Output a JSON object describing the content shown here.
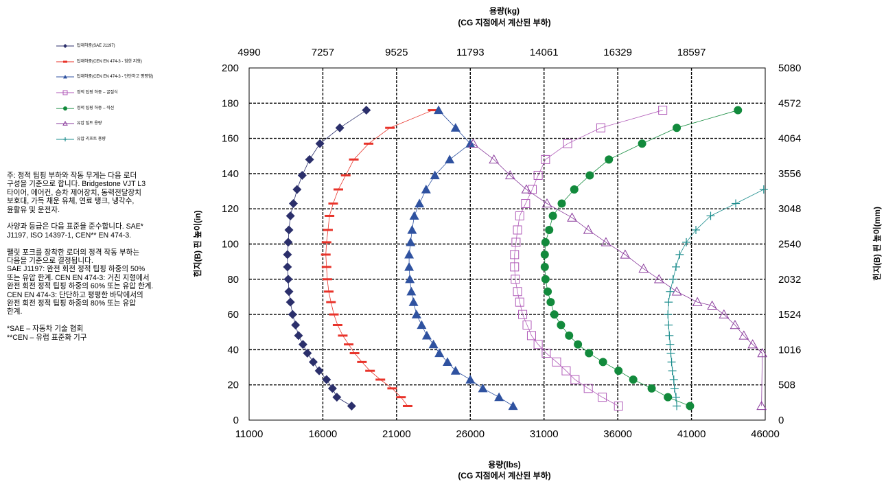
{
  "chart_data": {
    "type": "scatter",
    "title": "",
    "top_axis": {
      "title_line1": "용량(kg)",
      "title_line2": "(CG 지점에서 계산된 부하)",
      "tick_labels": [
        "4990",
        "7257",
        "9525",
        "11793",
        "14061",
        "16329",
        "18597"
      ]
    },
    "bottom_axis": {
      "title_line1": "용량(lbs)",
      "title_line2": "(CG 지점에서 계산된 부하)",
      "ticks": [
        11000,
        16000,
        21000,
        26000,
        31000,
        36000,
        41000,
        46000
      ],
      "xlim": [
        11000,
        46000
      ]
    },
    "left_axis": {
      "title": "힌지(B) 핀 높이(in)",
      "ticks": [
        0,
        20,
        40,
        60,
        80,
        100,
        120,
        140,
        160,
        180,
        200
      ],
      "ylim": [
        0,
        200
      ]
    },
    "right_axis": {
      "title": "힌지(B) 핀 높이(mm)",
      "tick_labels": [
        "0",
        "508",
        "1016",
        "1524",
        "2032",
        "2540",
        "3048",
        "3556",
        "4064",
        "4572",
        "5080"
      ]
    },
    "grid": true,
    "legend_position": "upper-left",
    "series": [
      {
        "name": "탑재하중(SAE J1197)",
        "color": "#2b2f6b",
        "marker": "diamond",
        "line": true,
        "points": [
          [
            17950,
            8
          ],
          [
            16950,
            13
          ],
          [
            16650,
            18
          ],
          [
            16250,
            23
          ],
          [
            15750,
            28
          ],
          [
            15350,
            33
          ],
          [
            14950,
            38
          ],
          [
            14650,
            43
          ],
          [
            14350,
            48
          ],
          [
            14150,
            54
          ],
          [
            13950,
            60
          ],
          [
            13800,
            67
          ],
          [
            13700,
            73
          ],
          [
            13650,
            80
          ],
          [
            13600,
            87
          ],
          [
            13600,
            94
          ],
          [
            13650,
            101
          ],
          [
            13700,
            108
          ],
          [
            13800,
            116
          ],
          [
            14000,
            123
          ],
          [
            14250,
            131
          ],
          [
            14600,
            139
          ],
          [
            15100,
            148
          ],
          [
            15800,
            157
          ],
          [
            17150,
            166
          ],
          [
            18950,
            176
          ]
        ]
      },
      {
        "name": "탑재하중(CEN EN 474-3 - 험한 지형)",
        "color": "#e8332a",
        "marker": "dash",
        "line": true,
        "points": [
          [
            21750,
            8
          ],
          [
            21300,
            13
          ],
          [
            20700,
            18
          ],
          [
            19900,
            23
          ],
          [
            19200,
            28
          ],
          [
            18650,
            33
          ],
          [
            18150,
            38
          ],
          [
            17750,
            43
          ],
          [
            17350,
            48
          ],
          [
            17000,
            54
          ],
          [
            16750,
            60
          ],
          [
            16550,
            67
          ],
          [
            16400,
            73
          ],
          [
            16300,
            80
          ],
          [
            16250,
            87
          ],
          [
            16200,
            94
          ],
          [
            16250,
            101
          ],
          [
            16350,
            108
          ],
          [
            16450,
            116
          ],
          [
            16700,
            123
          ],
          [
            17050,
            131
          ],
          [
            17550,
            139
          ],
          [
            18100,
            148
          ],
          [
            19100,
            157
          ],
          [
            20550,
            166
          ],
          [
            23450,
            176
          ]
        ]
      },
      {
        "name": "탑재하중(CEN EN 474-3 - 단단하고 평평함)",
        "color": "#2f52a0",
        "marker": "triangle",
        "line": true,
        "points": [
          [
            28900,
            8
          ],
          [
            27950,
            13
          ],
          [
            26850,
            18
          ],
          [
            26000,
            23
          ],
          [
            25000,
            28
          ],
          [
            24450,
            33
          ],
          [
            23900,
            38
          ],
          [
            23500,
            43
          ],
          [
            23050,
            48
          ],
          [
            22700,
            54
          ],
          [
            22350,
            60
          ],
          [
            22150,
            67
          ],
          [
            22000,
            73
          ],
          [
            21900,
            80
          ],
          [
            21850,
            87
          ],
          [
            21850,
            94
          ],
          [
            21950,
            101
          ],
          [
            22050,
            108
          ],
          [
            22200,
            116
          ],
          [
            22550,
            123
          ],
          [
            23000,
            131
          ],
          [
            23600,
            139
          ],
          [
            24600,
            148
          ],
          [
            26000,
            157
          ],
          [
            25000,
            166
          ],
          [
            23850,
            176
          ]
        ]
      },
      {
        "name": "정적 팁핑 하중 – 굴절식",
        "color": "#b05ab8",
        "marker": "square-open",
        "line": true,
        "points": [
          [
            36050,
            8
          ],
          [
            34950,
            13
          ],
          [
            34000,
            18
          ],
          [
            33100,
            23
          ],
          [
            32500,
            28
          ],
          [
            31850,
            33
          ],
          [
            31150,
            38
          ],
          [
            30600,
            43
          ],
          [
            30150,
            48
          ],
          [
            29850,
            54
          ],
          [
            29550,
            60
          ],
          [
            29350,
            67
          ],
          [
            29200,
            73
          ],
          [
            29050,
            80
          ],
          [
            29000,
            87
          ],
          [
            29000,
            94
          ],
          [
            29100,
            101
          ],
          [
            29200,
            108
          ],
          [
            29350,
            116
          ],
          [
            29750,
            123
          ],
          [
            30200,
            131
          ],
          [
            30600,
            139
          ],
          [
            31100,
            148
          ],
          [
            32600,
            157
          ],
          [
            34850,
            166
          ],
          [
            39050,
            176
          ]
        ]
      },
      {
        "name": "정적 팁핑 하중 – 직선",
        "color": "#128a3c",
        "marker": "circle",
        "line": true,
        "points": [
          [
            40900,
            8
          ],
          [
            39400,
            13
          ],
          [
            38300,
            18
          ],
          [
            37050,
            23
          ],
          [
            36050,
            28
          ],
          [
            35000,
            33
          ],
          [
            34050,
            38
          ],
          [
            33300,
            43
          ],
          [
            32700,
            48
          ],
          [
            32150,
            54
          ],
          [
            31700,
            60
          ],
          [
            31450,
            67
          ],
          [
            31250,
            73
          ],
          [
            31100,
            80
          ],
          [
            31050,
            87
          ],
          [
            31050,
            94
          ],
          [
            31100,
            101
          ],
          [
            31350,
            108
          ],
          [
            31600,
            116
          ],
          [
            32200,
            123
          ],
          [
            33050,
            131
          ],
          [
            34100,
            139
          ],
          [
            35400,
            148
          ],
          [
            37650,
            157
          ],
          [
            40000,
            166
          ],
          [
            44150,
            176
          ]
        ]
      },
      {
        "name": "유압 틸트 용량",
        "color": "#8a3b9c",
        "marker": "triangle-open",
        "line": true,
        "points": [
          [
            45750,
            8
          ],
          [
            45800,
            38
          ],
          [
            45150,
            43
          ],
          [
            44550,
            48
          ],
          [
            43950,
            54
          ],
          [
            43200,
            60
          ],
          [
            42400,
            65
          ],
          [
            41400,
            67
          ],
          [
            40000,
            73
          ],
          [
            38800,
            80
          ],
          [
            37750,
            86
          ],
          [
            36500,
            94
          ],
          [
            35200,
            101
          ],
          [
            34000,
            108
          ],
          [
            32900,
            115
          ],
          [
            31200,
            123
          ],
          [
            29800,
            131
          ],
          [
            28700,
            139
          ],
          [
            27600,
            148
          ],
          [
            26200,
            157
          ]
        ]
      },
      {
        "name": "유압 리프트 용량",
        "color": "#1a8c8c",
        "marker": "plus",
        "line": true,
        "points": [
          [
            40000,
            8
          ],
          [
            39950,
            13
          ],
          [
            39850,
            18
          ],
          [
            39800,
            23
          ],
          [
            39700,
            28
          ],
          [
            39650,
            33
          ],
          [
            39600,
            38
          ],
          [
            39550,
            43
          ],
          [
            39500,
            48
          ],
          [
            39450,
            54
          ],
          [
            39400,
            60
          ],
          [
            39450,
            67
          ],
          [
            39550,
            73
          ],
          [
            39750,
            80
          ],
          [
            39950,
            87
          ],
          [
            40200,
            94
          ],
          [
            40650,
            101
          ],
          [
            41300,
            108
          ],
          [
            42300,
            116
          ],
          [
            44000,
            123
          ],
          [
            45900,
            131
          ]
        ]
      }
    ]
  },
  "note": {
    "p1": "주: 정적 팁핑 부하와 작동 무게는 다음 로더\n구성을 기준으로 합니다. Bridgestone VJT L3\n타이어, 에어컨, 승차 제어장치, 동력전달장치\n보호대, 가득 채운 유체, 연료 탱크, 냉각수,\n윤활유 및 운전자.",
    "p2": "사양과 등급은 다음 표준을 준수합니다. SAE*\nJ1197, ISO 14397-1, CEN** EN 474-3.",
    "p3": "팰릿 포크를 장착한 로더의 정격 작동 부하는\n다음을 기준으로 결정됩니다.\nSAE J1197: 완전 회전 정적 팁핑 하중의 50%\n또는 유압 한계. CEN EN 474-3: 거친 지형에서\n완전 회전 정적 팁핑 하중의 60% 또는 유압 한계.\nCEN EN 474-3: 단단하고 평평한 바닥에서의\n완전 회전 정적 팁핑 하중의 80% 또는 유압\n한계.",
    "p4": "*SAE – 자동차 기술 협회\n**CEN – 유럽 표준화 기구"
  }
}
